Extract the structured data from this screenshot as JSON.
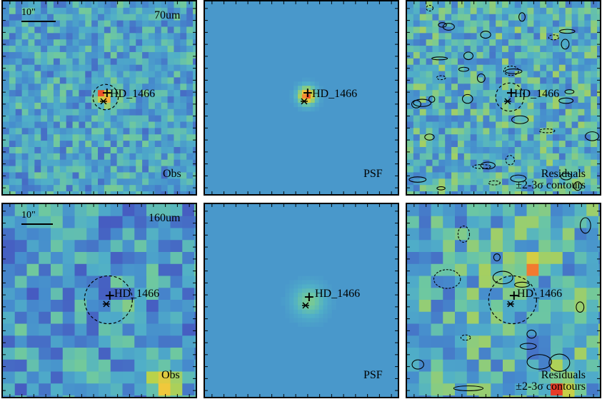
{
  "target_name": "HD_1466",
  "rows": [
    {
      "wavelength": "70um",
      "scale_bar": "10\"",
      "panels": [
        {
          "label": "Obs"
        },
        {
          "label": "PSF"
        },
        {
          "label": "Residuals",
          "sublabel": "±2-3σ contours"
        }
      ]
    },
    {
      "wavelength": "160um",
      "scale_bar": "10\"",
      "panels": [
        {
          "label": "Obs"
        },
        {
          "label": "PSF"
        },
        {
          "label": "Residuals",
          "sublabel": "±2-3σ contours"
        }
      ]
    }
  ],
  "colors": {
    "background": "#4a8fc0",
    "noise_low": "#3b2a8a",
    "noise_mid": "#5aa7c8",
    "noise_high": "#b8d24a",
    "peak": "#e8402a",
    "border": "#000000"
  }
}
